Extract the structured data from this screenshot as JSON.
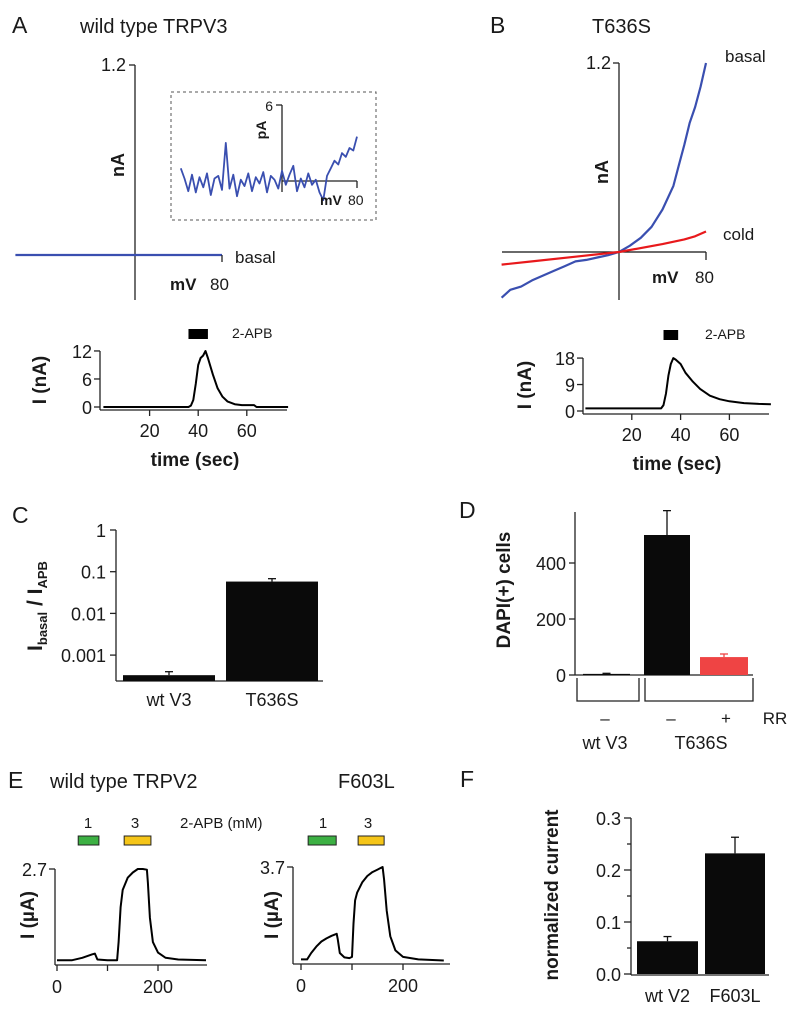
{
  "colors": {
    "basal": "#3a4fb0",
    "cold": "#e8191c",
    "rr_bar": "#ef4444",
    "bar": "#0a0a0a",
    "apb_1mM": "#3cb043",
    "apb_3mM": "#f5c518"
  },
  "chart_data": [
    {
      "panel": "A",
      "type": "line",
      "title": "wild type TRPV3",
      "iv": {
        "ylabel": "nA",
        "xlabel": "mV",
        "ytick": "1.2",
        "xtick": "80",
        "ylim": [
          0,
          1.2
        ],
        "xlim": [
          -110,
          80
        ],
        "series": [
          {
            "name": "basal",
            "x": [
              -110,
              80
            ],
            "y": [
              0,
              0
            ]
          }
        ]
      },
      "inset": {
        "ylabel": "pA",
        "xlabel": "mV",
        "ytick": "6",
        "xtick": "80",
        "ylim": [
          0,
          6
        ],
        "x_start": -108,
        "x_step": 4,
        "y": [
          1.0,
          0.2,
          -0.8,
          0.5,
          -0.9,
          0.3,
          -0.5,
          0.6,
          -1.1,
          0.2,
          0.4,
          -0.7,
          3.0,
          -0.6,
          0.5,
          -1.2,
          0.1,
          -0.4,
          0.6,
          -0.8,
          0.3,
          -0.2,
          0.7,
          -0.9,
          0.4,
          0.1,
          -0.6,
          0.8,
          -0.3,
          0.5,
          1.2,
          -0.8,
          0.2,
          -0.5,
          0.6,
          -0.3,
          0.1,
          -0.9,
          -1.5,
          0.4,
          1.0,
          1.6,
          1.3,
          2.2,
          1.9,
          2.6,
          2.4,
          3.5
        ]
      },
      "time": {
        "ylabel": "I (nA)",
        "xlabel": "time (sec)",
        "yticks": [
          "0",
          "6",
          "12"
        ],
        "xticks": [
          "20",
          "40",
          "60"
        ],
        "ytick_values": [
          0,
          6,
          12
        ],
        "xtick_values": [
          20,
          40,
          60
        ],
        "bar_label": "2-APB",
        "bar_interval": [
          36,
          44
        ],
        "x": [
          1,
          36,
          37,
          38,
          39,
          40,
          41,
          42,
          43,
          44,
          46,
          48,
          50,
          52,
          55,
          58,
          63,
          64,
          77
        ],
        "y": [
          0,
          0,
          0.3,
          1.5,
          5,
          9,
          10.5,
          11,
          12,
          10.5,
          7,
          4,
          2.2,
          1.2,
          0.6,
          0.4,
          0.4,
          0,
          0
        ]
      }
    },
    {
      "panel": "B",
      "type": "line",
      "title": "T636S",
      "iv": {
        "ylabel": "nA",
        "xlabel": "mV",
        "ytick": "1.2",
        "xtick": "80",
        "ylim": [
          -0.3,
          1.2
        ],
        "xlim": [
          -108,
          80
        ],
        "series": [
          {
            "name": "basal",
            "x": [
              -108,
              -100,
              -90,
              -80,
              -70,
              -60,
              -50,
              -40,
              -30,
              -20,
              -10,
              0,
              10,
              20,
              30,
              40,
              50,
              55,
              60,
              65,
              70,
              75,
              80
            ],
            "y": [
              -0.29,
              -0.24,
              -0.22,
              -0.18,
              -0.15,
              -0.12,
              -0.09,
              -0.06,
              -0.05,
              -0.035,
              -0.02,
              0,
              0.04,
              0.09,
              0.16,
              0.27,
              0.42,
              0.55,
              0.68,
              0.82,
              0.92,
              1.05,
              1.2
            ]
          },
          {
            "name": "cold",
            "x": [
              -108,
              -80,
              -40,
              0,
              40,
              60,
              70,
              80
            ],
            "y": [
              -0.08,
              -0.06,
              -0.03,
              0,
              0.05,
              0.08,
              0.1,
              0.13
            ]
          }
        ]
      },
      "time": {
        "ylabel": "I (nA)",
        "xlabel": "time (sec)",
        "yticks": [
          "0",
          "9",
          "18"
        ],
        "xticks": [
          "20",
          "40",
          "60"
        ],
        "ytick_values": [
          0,
          9,
          18
        ],
        "xtick_values": [
          20,
          40,
          60
        ],
        "bar_label": "2-APB",
        "bar_interval": [
          33,
          39
        ],
        "x": [
          1,
          32,
          33,
          34,
          35,
          36,
          37,
          38,
          40,
          42,
          45,
          48,
          52,
          56,
          60,
          66,
          72,
          77
        ],
        "y": [
          0.9,
          0.9,
          2,
          6,
          12,
          16,
          18,
          17.5,
          16,
          13,
          10,
          7.5,
          5.2,
          4,
          3.3,
          2.7,
          2.4,
          2.3
        ]
      }
    },
    {
      "panel": "C",
      "type": "bar",
      "scale": "log",
      "ylabel": {
        "main": "I",
        "sub1": "basal",
        "mid": " / I",
        "sub2": "APB"
      },
      "yticks": [
        "0.001",
        "0.01",
        "0.1",
        "1"
      ],
      "ytick_values": [
        0.001,
        0.01,
        0.1,
        1
      ],
      "categories": [
        "wt V3",
        "T636S"
      ],
      "values": [
        0.00033,
        0.058
      ],
      "errors": [
        0.0004,
        0.068
      ]
    },
    {
      "panel": "D",
      "type": "bar",
      "ylabel": "DAPI(+) cells",
      "yticks": [
        "0",
        "200",
        "400"
      ],
      "ytick_values": [
        0,
        200,
        400
      ],
      "values": [
        4,
        500,
        64
      ],
      "errors": [
        6,
        587,
        75
      ],
      "rr_signs": [
        "–",
        "–",
        "+"
      ],
      "rr_label": "RR",
      "groups": [
        "wt V3",
        "T636S"
      ]
    },
    {
      "panel": "E",
      "type": "line",
      "title": "wild type TRPV2",
      "title2": "F603L",
      "apb_label": "2-APB (mM)",
      "conc_labels": [
        "1",
        "3"
      ],
      "ylabel": "I (µA)",
      "traces": [
        {
          "name": "wild type TRPV2",
          "ymax_label": "2.7",
          "ymax": 2.7,
          "xticks": [
            "0",
            "200"
          ],
          "bars": [
            [
              42,
              83
            ],
            [
              133,
              186
            ]
          ],
          "x": [
            0,
            30,
            50,
            70,
            75,
            80,
            100,
            119,
            122,
            126,
            130,
            140,
            150,
            160,
            170,
            178,
            180,
            184,
            190,
            200,
            215,
            240,
            295
          ],
          "y": [
            0.08,
            0.08,
            0.15,
            0.25,
            0.27,
            0.1,
            0.08,
            0.08,
            0.6,
            1.6,
            2.1,
            2.45,
            2.6,
            2.7,
            2.7,
            2.68,
            2.3,
            1.3,
            0.6,
            0.3,
            0.15,
            0.1,
            0.08
          ]
        },
        {
          "name": "F603L",
          "ymax_label": "3.7",
          "ymax": 3.7,
          "xticks": [
            "0",
            "200"
          ],
          "bars": [
            [
              14,
              69
            ],
            [
              112,
              163
            ]
          ],
          "x": [
            0,
            12,
            20,
            30,
            40,
            50,
            60,
            70,
            72,
            76,
            85,
            95,
            100,
            103,
            106,
            110,
            120,
            130,
            140,
            150,
            160,
            163,
            168,
            175,
            185,
            200,
            230,
            280
          ],
          "y": [
            0.1,
            0.1,
            0.35,
            0.6,
            0.8,
            0.92,
            1.02,
            1.1,
            0.9,
            0.35,
            0.18,
            0.15,
            0.2,
            1.5,
            2.4,
            2.7,
            3.1,
            3.35,
            3.5,
            3.6,
            3.7,
            3.2,
            2,
            1.0,
            0.45,
            0.2,
            0.1,
            0.06
          ]
        }
      ]
    },
    {
      "panel": "F",
      "type": "bar",
      "ylabel": "normalized current",
      "yticks": [
        "0.0",
        "0.1",
        "0.2",
        "0.3"
      ],
      "ytick_values": [
        0,
        0.1,
        0.2,
        0.3
      ],
      "categories": [
        "wt V2",
        "F603L"
      ],
      "values": [
        0.063,
        0.232
      ],
      "errors": [
        0.072,
        0.263
      ]
    }
  ]
}
